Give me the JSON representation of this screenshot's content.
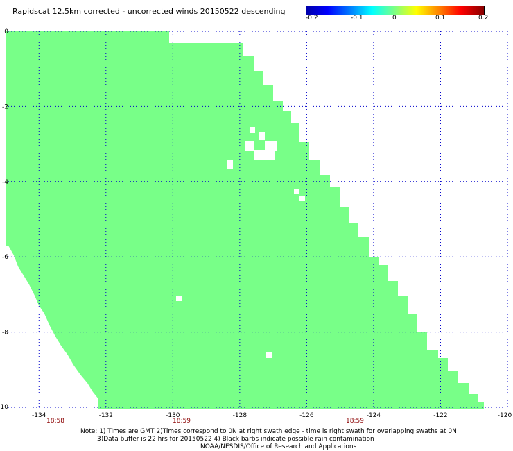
{
  "title": "Rapidscat 12.5km corrected - uncorrected winds 20150522 descending",
  "colorbar": {
    "labels": [
      "-0.2",
      "-0.1",
      "0",
      "0.1",
      "0.2"
    ],
    "colors": [
      "#0000aa",
      "#0000ff",
      "#00ffff",
      "#80ff80",
      "#ffff00",
      "#ff8000",
      "#880000"
    ]
  },
  "map": {
    "lon_range": [
      -135,
      -120
    ],
    "lat_range": [
      -10,
      0
    ],
    "x_ticks": [
      "-134",
      "-132",
      "-130",
      "-128",
      "-126",
      "-124",
      "-122",
      "-120"
    ],
    "y_ticks": [
      "0",
      "-2",
      "-4",
      "-6",
      "-8",
      "-10"
    ],
    "fill_color": "#78ff88",
    "time_labels": [
      "18:58",
      "18:59",
      "18:59"
    ],
    "time_color": "#8b0000",
    "grid": "dotted blue"
  },
  "notes": {
    "line1": "Note: 1) Times are GMT 2)Times correspond to 0N at right swath edge - time is right swath for overlapping swaths at 0N",
    "line2": "3)Data buffer is 22 hrs for 20150522 4) Black barbs indicate possible rain contamination",
    "line3": "NOAA/NESDIS/Office of Research and Applications"
  }
}
